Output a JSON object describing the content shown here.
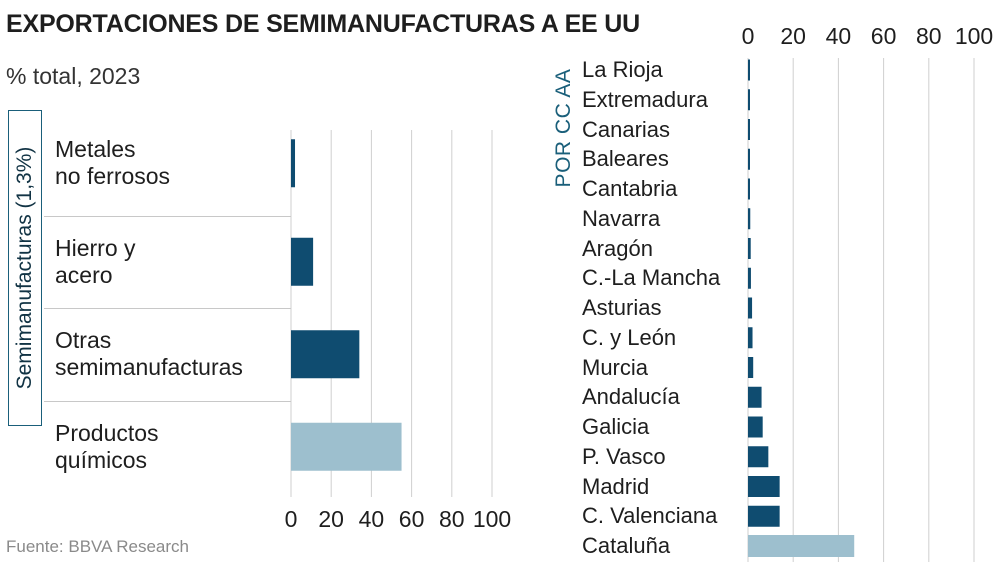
{
  "title": "EXPORTACIONES DE SEMIMANUFACTURAS A EE UU",
  "subtitle": "% total, 2023",
  "source": "Fuente: BBVA Research",
  "colors": {
    "dark": "#0f4c70",
    "light": "#9dbfce",
    "grid": "#cfcfcf",
    "accent": "#1a5f7a"
  },
  "chart_data": [
    {
      "type": "bar",
      "orientation": "horizontal",
      "group_label": "Semimanufacturas (1,3%)",
      "categories": [
        "Metales\nno ferrosos",
        "Hierro y\nacero",
        "Otras\nsemimanufacturas",
        "Productos\nquímicos"
      ],
      "values": [
        2,
        11,
        34,
        55
      ],
      "highlight": [
        false,
        false,
        false,
        true
      ],
      "xlim": [
        0,
        100
      ],
      "xticks": [
        "0",
        "20",
        "40",
        "60",
        "80",
        "100"
      ],
      "tick_values": [
        0,
        20,
        40,
        60,
        80,
        100
      ]
    },
    {
      "type": "bar",
      "orientation": "horizontal",
      "group_label": "POR CC AA",
      "categories": [
        "La Rioja",
        "Extremadura",
        "Canarias",
        "Baleares",
        "Cantabria",
        "Navarra",
        "Aragón",
        "C.-La Mancha",
        "Asturias",
        "C. y León",
        "Murcia",
        "Andalucía",
        "Galicia",
        "P. Vasco",
        "Madrid",
        "C. Valenciana",
        "Cataluña"
      ],
      "values": [
        0.3,
        0.5,
        0.5,
        0.6,
        0.8,
        1.0,
        1.2,
        1.3,
        1.8,
        2.0,
        2.3,
        6,
        6.5,
        9,
        14,
        14,
        47
      ],
      "highlight": [
        false,
        false,
        false,
        false,
        false,
        false,
        false,
        false,
        false,
        false,
        false,
        false,
        false,
        false,
        false,
        false,
        true
      ],
      "xlim": [
        0,
        100
      ],
      "xticks": [
        "0",
        "20",
        "40",
        "60",
        "80",
        "100"
      ],
      "tick_values": [
        0,
        20,
        40,
        60,
        80,
        100
      ]
    }
  ]
}
